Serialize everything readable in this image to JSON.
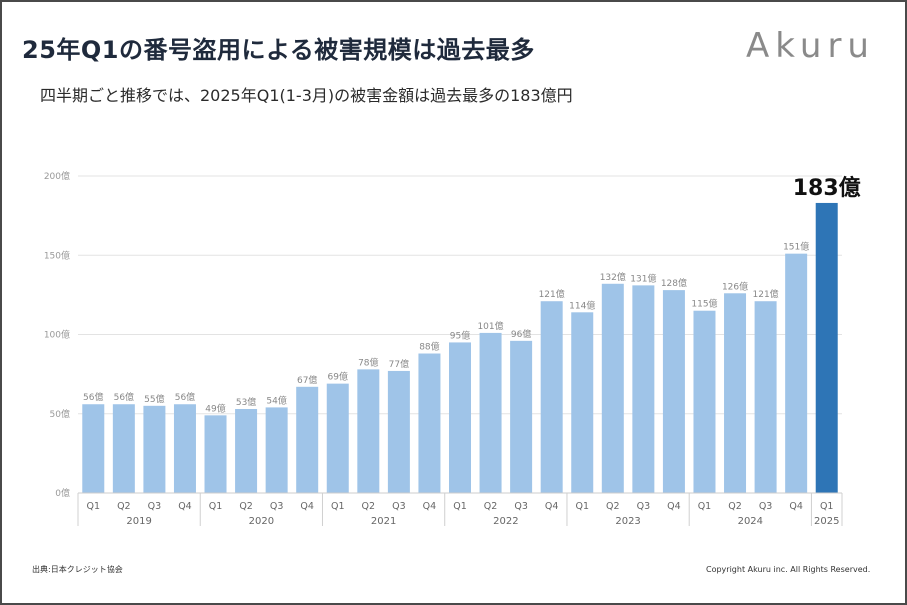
{
  "header": {
    "title": "25年Q1の番号盗用による被害規模は過去最多",
    "subtitle": "四半期ごと推移では、2025年Q1(1-3月)の被害金額は過去最多の183億円",
    "logo_text": "Akuru"
  },
  "footer": {
    "source": "出典:日本クレジット協会",
    "copyright": "Copyright Akuru inc. All Rights Reserved."
  },
  "colors": {
    "bar": "#9fc4e8",
    "highlight_bar": "#2e75b6",
    "grid": "#e3e3e3"
  },
  "chart_data": {
    "type": "bar",
    "title": "",
    "xlabel": "",
    "ylabel": "",
    "ylim": [
      0,
      200
    ],
    "yticks": [
      {
        "value": 0,
        "label": "0億"
      },
      {
        "value": 50,
        "label": "50億"
      },
      {
        "value": 100,
        "label": "100億"
      },
      {
        "value": 150,
        "label": "150億"
      },
      {
        "value": 200,
        "label": "200億"
      }
    ],
    "grid": true,
    "unit_suffix": "億",
    "categories": [
      "Q1",
      "Q2",
      "Q3",
      "Q4",
      "Q1",
      "Q2",
      "Q3",
      "Q4",
      "Q1",
      "Q2",
      "Q3",
      "Q4",
      "Q1",
      "Q2",
      "Q3",
      "Q4",
      "Q1",
      "Q2",
      "Q3",
      "Q4",
      "Q1",
      "Q2",
      "Q3",
      "Q4",
      "Q1"
    ],
    "values": [
      56,
      56,
      55,
      56,
      49,
      53,
      54,
      67,
      69,
      78,
      77,
      88,
      95,
      101,
      96,
      121,
      114,
      132,
      131,
      128,
      115,
      126,
      121,
      151,
      183
    ],
    "data_labels": [
      "56億",
      "56億",
      "55億",
      "56億",
      "49億",
      "53億",
      "54億",
      "67億",
      "69億",
      "78億",
      "77億",
      "88億",
      "95億",
      "101億",
      "96億",
      "121億",
      "114億",
      "132億",
      "131億",
      "128億",
      "115億",
      "126億",
      "121億",
      "151億",
      "183億"
    ],
    "highlight_index": 24,
    "year_groups": [
      {
        "label": "2019",
        "count": 4
      },
      {
        "label": "2020",
        "count": 4
      },
      {
        "label": "2021",
        "count": 4
      },
      {
        "label": "2022",
        "count": 4
      },
      {
        "label": "2023",
        "count": 4
      },
      {
        "label": "2024",
        "count": 4
      },
      {
        "label": "2025",
        "count": 1
      }
    ]
  }
}
